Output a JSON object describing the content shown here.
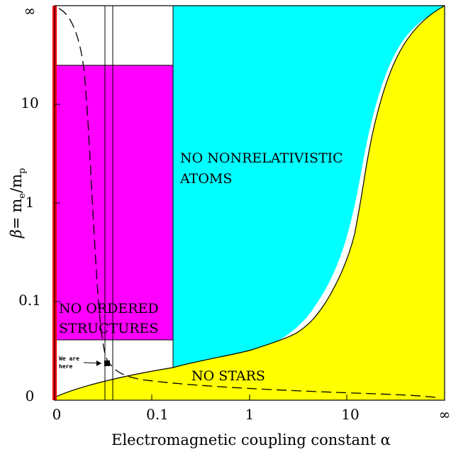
{
  "chart_data": {
    "type": "area",
    "title": "",
    "xlabel": "Electromagnetic coupling constant α",
    "ylabel": "β = me/mp",
    "ylabel_parts": {
      "beta": "β",
      "eq": "=",
      "m1": "m",
      "sub_e": "e",
      "slash": "/",
      "m2": "m",
      "sub_p": "p"
    },
    "x_scale": "compactified log (0 to ∞)",
    "y_scale": "compactified log (0 to ∞)",
    "x_ticks": [
      "0",
      "0.1",
      "1",
      "10",
      "∞"
    ],
    "y_ticks": [
      "0",
      "0.1",
      "1",
      "10",
      "∞"
    ],
    "regions": [
      {
        "id": "no-ordered-structures",
        "lines": [
          "NO ORDERED",
          "STRUCTURES"
        ],
        "color": "#ff00ff",
        "alpha_max": 0.17,
        "beta_range": [
          0.04,
          25
        ]
      },
      {
        "id": "no-nonrelativistic-atoms",
        "lines": [
          "NO NONRELATIVISTIC",
          "ATOMS"
        ],
        "color": "#00ffff",
        "alpha_min": 0.17
      },
      {
        "id": "no-stars",
        "lines": [
          "NO STARS"
        ],
        "color": "#ffff00"
      }
    ],
    "boundaries": {
      "stars_curve": {
        "description": "upper edge of NO STARS region",
        "alpha": [
          0,
          0.03,
          0.17,
          0.5,
          1,
          2,
          3,
          5,
          7,
          10,
          13,
          20,
          40,
          1000
        ],
        "beta": [
          0,
          0.006,
          0.018,
          0.026,
          0.033,
          0.045,
          0.06,
          0.1,
          0.18,
          0.5,
          1.5,
          5,
          12,
          1000
        ]
      },
      "dashed_curve": {
        "style": "dashed",
        "alpha": [
          0.03,
          0.04,
          0.05,
          0.06,
          0.07,
          0.085,
          0.1,
          0.2,
          0.5,
          1,
          5,
          20,
          1000
        ],
        "beta": [
          1000,
          50,
          5,
          0.3,
          0.05,
          0.02,
          0.014,
          0.009,
          0.007,
          0.006,
          0.005,
          0.004,
          0
        ]
      },
      "vertical_lines_alpha": [
        0.068,
        0.076
      ],
      "red_line_alpha": 0,
      "red_line_color": "#ff0000"
    },
    "annotation": {
      "lines": [
        "We are",
        "here"
      ],
      "marker": {
        "alpha": 0.0073,
        "beta": 0.00054
      }
    }
  }
}
